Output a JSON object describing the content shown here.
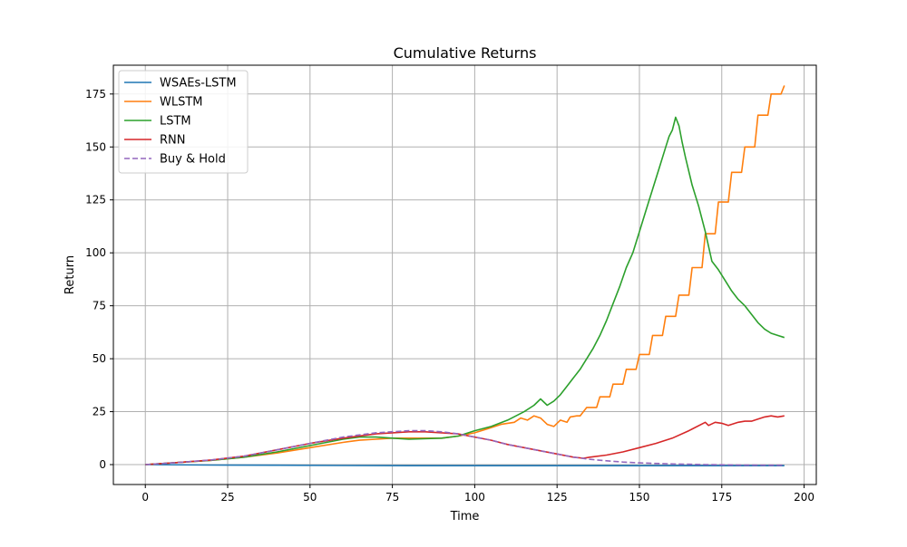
{
  "chart_data": {
    "type": "line",
    "title": "Cumulative Returns",
    "xlabel": "Time",
    "ylabel": "Return",
    "xlim": [
      -9.7,
      203.7
    ],
    "ylim": [
      -9.4,
      188.6
    ],
    "xticks": [
      0,
      25,
      50,
      75,
      100,
      125,
      150,
      175,
      200
    ],
    "yticks": [
      0,
      25,
      50,
      75,
      100,
      125,
      150,
      175
    ],
    "grid": true,
    "legend_position": "top-left",
    "series": [
      {
        "name": "WSAEs-LSTM",
        "color": "#1f77b4",
        "dashed": false,
        "x": [
          0,
          20,
          40,
          60,
          80,
          100,
          120,
          140,
          160,
          180,
          194
        ],
        "y": [
          0,
          -0.2,
          -0.3,
          -0.4,
          -0.5,
          -0.5,
          -0.5,
          -0.5,
          -0.5,
          -0.5,
          -0.5
        ]
      },
      {
        "name": "WLSTM",
        "color": "#ff7f0e",
        "dashed": false,
        "x": [
          0,
          10,
          20,
          30,
          40,
          50,
          60,
          65,
          70,
          75,
          80,
          90,
          95,
          100,
          104,
          108,
          112,
          114,
          116,
          118,
          120,
          122,
          124,
          126,
          128,
          129,
          131,
          132,
          134,
          137,
          138,
          141,
          142,
          145,
          146,
          149,
          150,
          153,
          154,
          157,
          158,
          161,
          162,
          165,
          166,
          169,
          170,
          173,
          174,
          177,
          178,
          181,
          182,
          185,
          186,
          189,
          190,
          193,
          194
        ],
        "y": [
          0,
          1.0,
          2.0,
          3.5,
          5.5,
          8,
          10.5,
          11.5,
          12,
          12.5,
          12.5,
          12.5,
          13.5,
          15,
          17,
          19,
          20,
          22,
          21,
          23,
          22,
          19,
          18,
          21,
          20,
          22.5,
          23,
          23,
          27,
          27,
          32,
          32,
          38,
          38,
          45,
          45,
          52,
          52,
          61,
          61,
          70,
          70,
          80,
          80,
          93,
          93,
          109,
          109,
          124,
          124,
          138,
          138,
          150,
          150,
          165,
          165,
          175,
          175,
          179
        ]
      },
      {
        "name": "LSTM",
        "color": "#2ca02c",
        "dashed": false,
        "x": [
          0,
          10,
          20,
          30,
          40,
          50,
          60,
          65,
          70,
          75,
          80,
          90,
          95,
          100,
          105,
          110,
          115,
          118,
          120,
          122,
          124,
          126,
          128,
          130,
          132,
          134,
          136,
          138,
          140,
          142,
          144,
          146,
          148,
          150,
          152,
          154,
          156,
          158,
          159,
          160,
          161,
          162,
          163,
          164,
          166,
          168,
          170,
          172,
          174,
          176,
          178,
          180,
          182,
          184,
          186,
          188,
          190,
          192,
          194
        ],
        "y": [
          0,
          1.0,
          2.0,
          3.5,
          6,
          9,
          12,
          13,
          13,
          12.5,
          12,
          12.5,
          13.5,
          16,
          18,
          21,
          25,
          28,
          31,
          28,
          30,
          33,
          37,
          41,
          45,
          50,
          55,
          61,
          68,
          76,
          84,
          93,
          100,
          110,
          120,
          130,
          140,
          150,
          155,
          158,
          164,
          160,
          152,
          145,
          132,
          122,
          110,
          96,
          92,
          87,
          82,
          78,
          75,
          71,
          67,
          64,
          62,
          61,
          60
        ]
      },
      {
        "name": "RNN",
        "color": "#d62728",
        "dashed": false,
        "x": [
          0,
          10,
          20,
          30,
          40,
          50,
          60,
          70,
          80,
          85,
          90,
          95,
          100,
          105,
          110,
          115,
          120,
          125,
          130,
          133,
          135,
          140,
          145,
          150,
          155,
          160,
          165,
          170,
          171,
          173,
          175,
          177,
          180,
          182,
          184,
          186,
          188,
          190,
          192,
          194
        ],
        "y": [
          0,
          1,
          2.2,
          4,
          7,
          10,
          12.5,
          14.5,
          15.5,
          15.5,
          15,
          14.5,
          13,
          11.5,
          9.5,
          8,
          6.5,
          5,
          3.5,
          3,
          3.5,
          4.5,
          6,
          8,
          10,
          12.5,
          16,
          20,
          18.5,
          20,
          19.5,
          18.5,
          20,
          20.5,
          20.5,
          21.5,
          22.5,
          23,
          22.5,
          23
        ]
      },
      {
        "name": "Buy & Hold",
        "color": "#9467bd",
        "dashed": true,
        "x": [
          0,
          10,
          20,
          30,
          40,
          50,
          60,
          70,
          80,
          85,
          90,
          95,
          100,
          105,
          110,
          115,
          120,
          125,
          130,
          135,
          140,
          145,
          150,
          160,
          170,
          180,
          190,
          194
        ],
        "y": [
          0,
          1,
          2.2,
          4,
          7,
          10,
          13,
          15,
          16,
          16,
          15.5,
          14.5,
          13,
          11.5,
          9.5,
          8,
          6.5,
          5,
          3.5,
          2.5,
          1.8,
          1.2,
          0.8,
          0.3,
          0,
          -0.2,
          -0.3,
          -0.3
        ]
      }
    ]
  }
}
